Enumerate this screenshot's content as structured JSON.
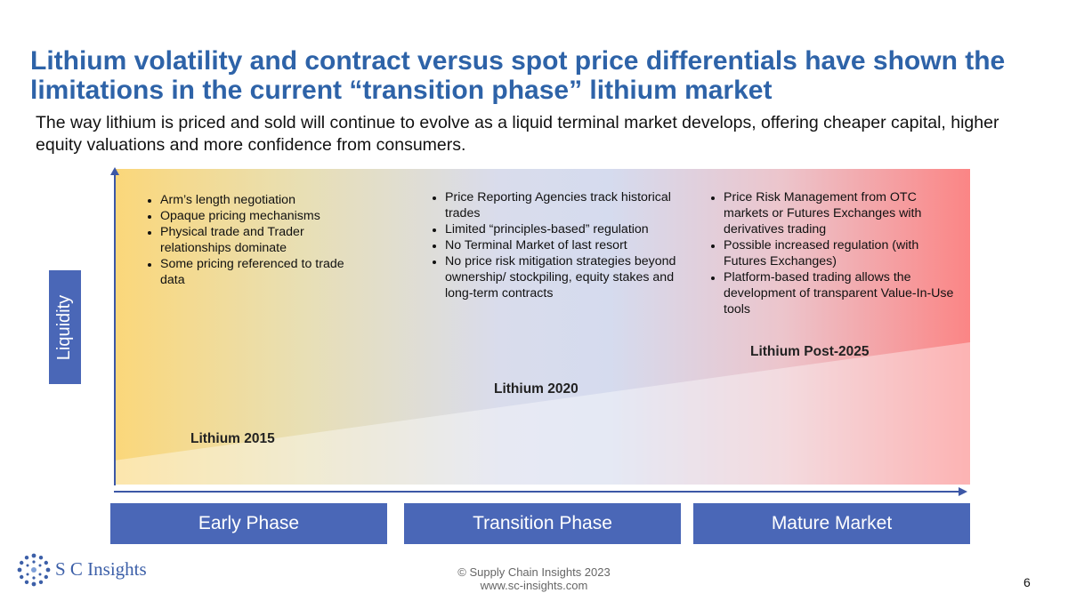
{
  "slide": {
    "title": "Lithium volatility and contract versus spot price differentials have shown the limitations in the current “transition phase” lithium market",
    "subtitle": "The way lithium is priced and sold will continue to evolve as a liquid terminal market develops, offering cheaper capital, higher equity valuations and more confidence from consumers."
  },
  "diagram": {
    "y_axis_label": "Liquidity",
    "columns": [
      {
        "bullets": [
          "Arm’s length negotiation",
          "Opaque pricing mechanisms",
          "Physical trade and Trader relationships dominate",
          "Some pricing referenced to trade data"
        ]
      },
      {
        "bullets": [
          "Price Reporting Agencies track historical trades",
          "Limited “principles-based” regulation",
          "No Terminal Market of last resort",
          "No price risk mitigation strategies beyond ownership/ stockpiling, equity stakes and long-term contracts"
        ]
      },
      {
        "bullets": [
          "Price Risk Management from OTC markets or Futures Exchanges with derivatives trading",
          "Possible increased regulation (with Futures Exchanges)",
          "Platform-based trading allows the development of transparent Value-In-Use tools"
        ]
      }
    ],
    "stage_labels": [
      "Lithium 2015",
      "Lithium 2020",
      "Lithium Post-2025"
    ],
    "phases": [
      "Early Phase",
      "Transition Phase",
      "Mature Market"
    ]
  },
  "footer": {
    "logo_text": "S C Insights",
    "copyright": "© Supply Chain Insights 2023",
    "website": "www.sc-insights.com",
    "page_number": "6"
  },
  "colors": {
    "title": "#2e63a8",
    "accent_blue": "#4a67b7",
    "gradient_left": "#fbd77a",
    "gradient_middle": "#d5dbee",
    "gradient_right": "#fb8585"
  }
}
